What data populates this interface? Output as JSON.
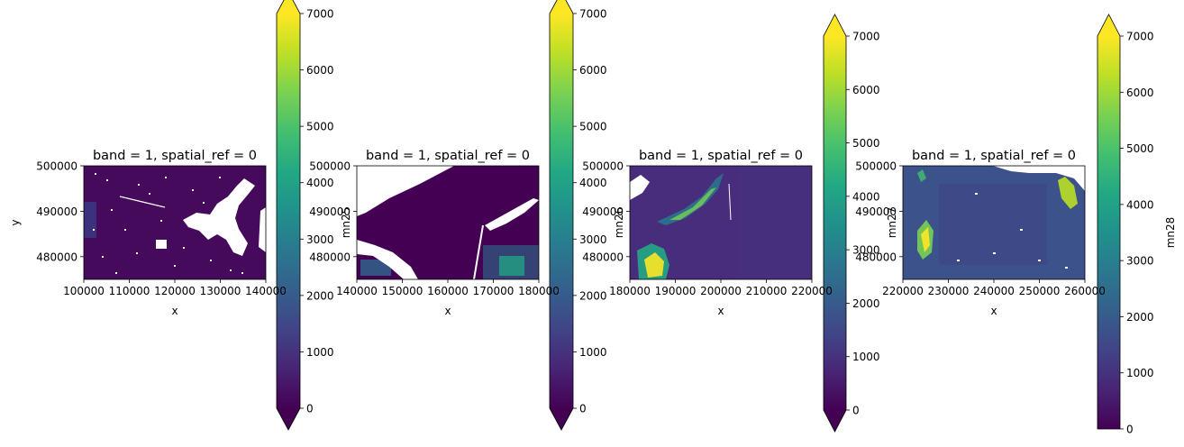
{
  "chart_data": [
    {
      "type": "heatmap",
      "title": "band = 1, spatial_ref = 0",
      "xlabel": "x",
      "ylabel": "y",
      "xlim": [
        100000,
        140000
      ],
      "ylim": [
        475000,
        500000
      ],
      "xticks": [
        100000,
        110000,
        120000,
        130000,
        140000
      ],
      "yticks": [
        480000,
        490000,
        500000
      ],
      "colorbar": {
        "label": "",
        "range": [
          0,
          7000
        ],
        "ticks": [
          0,
          1000,
          2000,
          3000,
          4000,
          5000,
          6000,
          7000
        ],
        "extend": "both",
        "colormap": "viridis"
      },
      "features": [
        "mostly low values (~0–500)",
        "white no-data area center-right (lake)",
        "small white speckles"
      ]
    },
    {
      "type": "heatmap",
      "title": "band = 1, spatial_ref = 0",
      "xlabel": "x",
      "ylabel": "mn25",
      "xlim": [
        140000,
        180000
      ],
      "ylim": [
        475000,
        500000
      ],
      "xticks": [
        140000,
        150000,
        160000,
        170000,
        180000
      ],
      "yticks": [
        480000,
        490000,
        500000
      ],
      "colorbar": {
        "label": "",
        "range": [
          0,
          7000
        ],
        "ticks": [
          0,
          1000,
          2000,
          3000,
          4000,
          5000,
          6000,
          7000
        ],
        "extend": "both",
        "colormap": "viridis"
      },
      "features": [
        "white no-data top-left",
        "white band lower-left",
        "moderate values ~2000–4000 bottom-right"
      ]
    },
    {
      "type": "heatmap",
      "title": "band = 1, spatial_ref = 0",
      "xlabel": "x",
      "ylabel": "mn26",
      "xlim": [
        180000,
        220000
      ],
      "ylim": [
        475000,
        500000
      ],
      "xticks": [
        180000,
        190000,
        200000,
        210000,
        220000
      ],
      "yticks": [
        480000,
        490000,
        500000
      ],
      "colorbar": {
        "label": "",
        "range": [
          0,
          7000
        ],
        "ticks": [
          0,
          1000,
          2000,
          3000,
          4000,
          5000,
          6000,
          7000
        ],
        "extend": "both",
        "colormap": "viridis"
      },
      "features": [
        "diagonal ridge ~4000–5500",
        "high values ~6000–7000 bottom-left"
      ]
    },
    {
      "type": "heatmap",
      "title": "band = 1, spatial_ref = 0",
      "xlabel": "x",
      "ylabel": "mn27",
      "xlim": [
        220000,
        260000
      ],
      "ylim": [
        475000,
        500000
      ],
      "xticks": [
        220000,
        230000,
        240000,
        250000,
        260000
      ],
      "yticks": [
        480000,
        490000,
        500000
      ],
      "colorbar": {
        "label": "mn28",
        "range": [
          0,
          7000
        ],
        "ticks": [
          0,
          1000,
          2000,
          3000,
          4000,
          5000,
          6000,
          7000
        ],
        "extend": "max",
        "colormap": "viridis"
      },
      "features": [
        "moderate values ~1000–2000",
        "high values ~6000–7000 left and upper-right",
        "white no-data top-right corner"
      ]
    }
  ]
}
